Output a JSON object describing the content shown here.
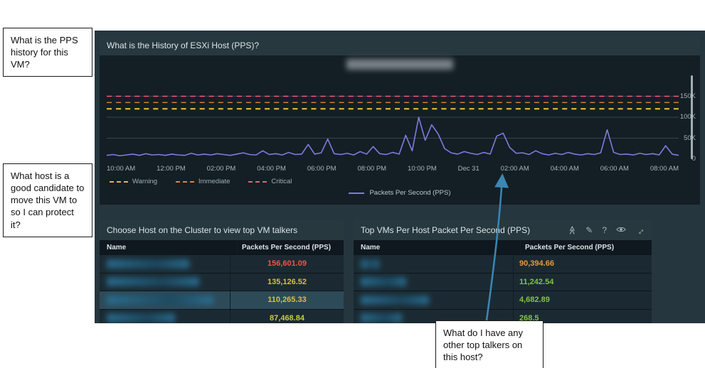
{
  "annotations": {
    "note1": "What is the PPS history for this VM?",
    "note2": "What host is a good candidate to move this VM to so I can protect it?",
    "note3": "What do I have any other top talkers on this host?",
    "arrow_color": "#3b87b5"
  },
  "top_panel": {
    "title": "What is the History of ESXi Host (PPS)?"
  },
  "left_panel": {
    "title": "Choose Host on the Cluster to view top VM talkers",
    "columns": [
      "Name",
      "Packets Per Second (PPS)"
    ],
    "rows": [
      {
        "value": "156,601.09",
        "color": "#f4524a",
        "selected": false
      },
      {
        "value": "135,126.52",
        "color": "#d8bf3e",
        "selected": false
      },
      {
        "value": "110,265.33",
        "color": "#d8bf3e",
        "selected": true
      },
      {
        "value": "87,468.84",
        "color": "#c6ce40",
        "selected": false
      }
    ]
  },
  "right_panel": {
    "title": "Top VMs Per Host Packet Per Second (PPS)",
    "columns": [
      "Name",
      "Packets Per Second (PPS)"
    ],
    "rows": [
      {
        "value": "90,394.66",
        "color": "#e59a3a"
      },
      {
        "value": "11,242.54",
        "color": "#82c341"
      },
      {
        "value": "4,682.89",
        "color": "#82c341"
      },
      {
        "value": "268.5",
        "color": "#82c341"
      }
    ],
    "icons": {
      "collapse": "≪",
      "edit": "✎",
      "help": "?",
      "expand": "↔"
    }
  },
  "chart_data": {
    "type": "line",
    "title": "What is the History of ESXi Host (PPS)?",
    "ylabel": "Packets Per Second (PPS)",
    "ylim_kpps": [
      0,
      200
    ],
    "grid_kpps": [
      50,
      100,
      150
    ],
    "y_ticks": [
      "150K",
      "100K",
      "50K",
      "0"
    ],
    "x_ticks": [
      "10:00 AM",
      "12:00 PM",
      "02:00 PM",
      "04:00 PM",
      "06:00 PM",
      "08:00 PM",
      "10:00 PM",
      "Dec 31",
      "02:00 AM",
      "04:00 AM",
      "06:00 AM",
      "08:00 AM"
    ],
    "thresholds": [
      {
        "label": "Warning",
        "value_kpps": 120,
        "color": "#e8b63b",
        "width": 2.2
      },
      {
        "label": "Immediate",
        "value_kpps": 135,
        "color": "#e5813b",
        "width": 1.4
      },
      {
        "label": "Critical",
        "value_kpps": 150,
        "color": "#ee5d72",
        "width": 1.4
      }
    ],
    "series": [
      {
        "name": "Packets Per Second (PPS)",
        "color": "#7e7ce0",
        "values_kpps": [
          9,
          11,
          8,
          10,
          12,
          9,
          13,
          10,
          11,
          9,
          12,
          10,
          9,
          14,
          10,
          12,
          10,
          13,
          11,
          9,
          12,
          15,
          11,
          10,
          20,
          11,
          13,
          10,
          16,
          11,
          12,
          35,
          12,
          15,
          48,
          13,
          11,
          14,
          10,
          18,
          12,
          30,
          13,
          11,
          16,
          12,
          57,
          20,
          100,
          45,
          82,
          60,
          25,
          15,
          12,
          18,
          14,
          11,
          16,
          12,
          55,
          62,
          28,
          14,
          15,
          11,
          20,
          13,
          10,
          14,
          11,
          16,
          12,
          10,
          13,
          11,
          15,
          70,
          16,
          11,
          12,
          10,
          14,
          11,
          13,
          10,
          32,
          12,
          9
        ]
      }
    ]
  }
}
